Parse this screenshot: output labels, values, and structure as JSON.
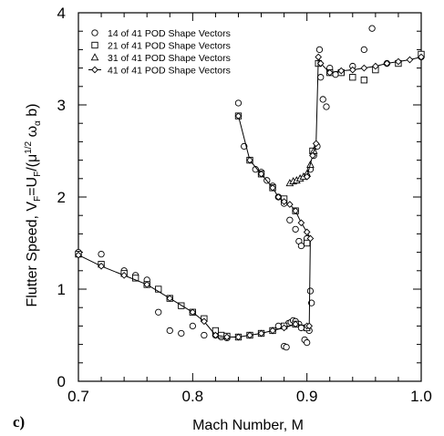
{
  "chart_data": {
    "type": "scatter",
    "panel_label": "c)",
    "xlabel": "Mach Number, M",
    "ylabel_parts": {
      "pre": "Flutter Speed, V",
      "sub1": "F",
      "mid": "=U",
      "sub2": "F",
      "mid2": "/(μ",
      "sup": "1/2",
      "post": " ω",
      "sub3": "α",
      "end": " b)"
    },
    "xlim": [
      0.7,
      1.0
    ],
    "ylim": [
      0,
      4
    ],
    "xticks": [
      "0.7",
      "0.8",
      "0.9",
      "1.0"
    ],
    "yticks": [
      "0",
      "1",
      "2",
      "3",
      "4"
    ],
    "legend_position": "top-left",
    "series": [
      {
        "name": "14 of 41 POD Shape Vectors",
        "marker": "circle",
        "points": [
          [
            0.7,
            1.4
          ],
          [
            0.72,
            1.38
          ],
          [
            0.74,
            1.2
          ],
          [
            0.75,
            1.15
          ],
          [
            0.76,
            1.1
          ],
          [
            0.77,
            0.75
          ],
          [
            0.78,
            0.55
          ],
          [
            0.79,
            0.52
          ],
          [
            0.8,
            0.6
          ],
          [
            0.81,
            0.5
          ],
          [
            0.82,
            0.5
          ],
          [
            0.825,
            0.48
          ],
          [
            0.83,
            0.47
          ],
          [
            0.84,
            0.48
          ],
          [
            0.85,
            0.5
          ],
          [
            0.86,
            0.52
          ],
          [
            0.87,
            0.55
          ],
          [
            0.875,
            0.6
          ],
          [
            0.88,
            0.38
          ],
          [
            0.882,
            0.37
          ],
          [
            0.884,
            0.63
          ],
          [
            0.886,
            0.64
          ],
          [
            0.888,
            0.66
          ],
          [
            0.89,
            0.65
          ],
          [
            0.893,
            0.62
          ],
          [
            0.895,
            0.58
          ],
          [
            0.898,
            0.45
          ],
          [
            0.9,
            0.42
          ],
          [
            0.902,
            0.55
          ],
          [
            0.903,
            0.98
          ],
          [
            0.904,
            0.85
          ],
          [
            0.84,
            3.02
          ],
          [
            0.845,
            2.55
          ],
          [
            0.85,
            2.4
          ],
          [
            0.855,
            2.3
          ],
          [
            0.86,
            2.27
          ],
          [
            0.865,
            2.18
          ],
          [
            0.87,
            2.12
          ],
          [
            0.875,
            2.0
          ],
          [
            0.88,
            1.93
          ],
          [
            0.885,
            1.75
          ],
          [
            0.89,
            1.65
          ],
          [
            0.893,
            1.52
          ],
          [
            0.895,
            1.47
          ],
          [
            0.9,
            1.55
          ],
          [
            0.9,
            2.23
          ],
          [
            0.903,
            2.3
          ],
          [
            0.906,
            2.45
          ],
          [
            0.909,
            2.55
          ],
          [
            0.911,
            3.6
          ],
          [
            0.912,
            3.3
          ],
          [
            0.914,
            3.06
          ],
          [
            0.917,
            2.98
          ],
          [
            0.92,
            3.4
          ],
          [
            0.925,
            3.33
          ],
          [
            0.93,
            3.35
          ],
          [
            0.94,
            3.42
          ],
          [
            0.95,
            3.6
          ],
          [
            0.957,
            3.83
          ],
          [
            0.97,
            3.45
          ],
          [
            1.0,
            3.52
          ]
        ]
      },
      {
        "name": "21 of 41 POD Shape Vectors",
        "marker": "square",
        "points": [
          [
            0.7,
            1.38
          ],
          [
            0.72,
            1.27
          ],
          [
            0.74,
            1.17
          ],
          [
            0.75,
            1.12
          ],
          [
            0.76,
            1.05
          ],
          [
            0.77,
            1.0
          ],
          [
            0.78,
            0.9
          ],
          [
            0.79,
            0.82
          ],
          [
            0.8,
            0.75
          ],
          [
            0.81,
            0.68
          ],
          [
            0.82,
            0.55
          ],
          [
            0.825,
            0.5
          ],
          [
            0.83,
            0.49
          ],
          [
            0.84,
            0.48
          ],
          [
            0.85,
            0.5
          ],
          [
            0.86,
            0.52
          ],
          [
            0.87,
            0.55
          ],
          [
            0.88,
            0.6
          ],
          [
            0.89,
            0.62
          ],
          [
            0.9,
            0.58
          ],
          [
            0.84,
            2.88
          ],
          [
            0.85,
            2.4
          ],
          [
            0.86,
            2.25
          ],
          [
            0.87,
            2.1
          ],
          [
            0.88,
            1.98
          ],
          [
            0.89,
            1.85
          ],
          [
            0.9,
            1.5
          ],
          [
            0.905,
            2.5
          ],
          [
            0.91,
            3.45
          ],
          [
            0.92,
            3.35
          ],
          [
            0.93,
            3.35
          ],
          [
            0.94,
            3.3
          ],
          [
            0.95,
            3.27
          ],
          [
            0.96,
            3.38
          ],
          [
            0.98,
            3.45
          ],
          [
            1.0,
            3.55
          ]
        ]
      },
      {
        "name": "31 of 41 POD Shape Vectors",
        "marker": "triangle",
        "points": [
          [
            0.885,
            2.15
          ],
          [
            0.888,
            2.17
          ],
          [
            0.891,
            2.18
          ],
          [
            0.894,
            2.2
          ],
          [
            0.897,
            2.22
          ],
          [
            0.9,
            2.25
          ],
          [
            0.903,
            2.35
          ],
          [
            0.906,
            2.5
          ]
        ]
      },
      {
        "name": "41 of 41 POD Shape Vectors",
        "marker": "diamond-line",
        "points": [
          [
            0.7,
            1.37
          ],
          [
            0.72,
            1.25
          ],
          [
            0.74,
            1.15
          ],
          [
            0.76,
            1.05
          ],
          [
            0.78,
            0.9
          ],
          [
            0.8,
            0.75
          ],
          [
            0.81,
            0.65
          ],
          [
            0.82,
            0.5
          ],
          [
            0.83,
            0.48
          ],
          [
            0.84,
            0.48
          ],
          [
            0.85,
            0.5
          ],
          [
            0.86,
            0.52
          ],
          [
            0.87,
            0.55
          ],
          [
            0.88,
            0.58
          ],
          [
            0.89,
            0.62
          ],
          [
            0.9,
            0.6
          ],
          [
            0.902,
            0.6
          ],
          [
            0.903,
            1.55
          ],
          [
            0.9,
            1.62
          ],
          [
            0.895,
            1.72
          ],
          [
            0.89,
            1.85
          ],
          [
            0.885,
            1.92
          ],
          [
            0.88,
            1.95
          ],
          [
            0.875,
            2.0
          ],
          [
            0.87,
            2.1
          ],
          [
            0.86,
            2.25
          ],
          [
            0.85,
            2.4
          ],
          [
            0.84,
            2.88
          ]
        ],
        "points_upper": [
          [
            0.9,
            2.22
          ],
          [
            0.905,
            2.45
          ],
          [
            0.908,
            2.58
          ],
          [
            0.91,
            3.52
          ],
          [
            0.912,
            3.45
          ],
          [
            0.92,
            3.35
          ],
          [
            0.93,
            3.37
          ],
          [
            0.94,
            3.38
          ],
          [
            0.95,
            3.4
          ],
          [
            0.96,
            3.42
          ],
          [
            0.97,
            3.45
          ],
          [
            0.98,
            3.47
          ],
          [
            0.99,
            3.49
          ],
          [
            1.0,
            3.52
          ]
        ]
      }
    ]
  }
}
